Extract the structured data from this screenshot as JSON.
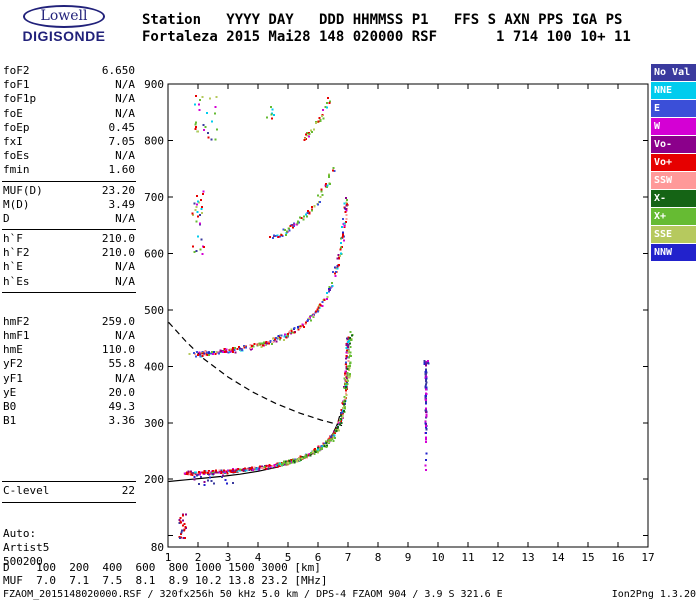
{
  "logo": {
    "brand": "Lowell",
    "product": "DIGISONDE"
  },
  "header": {
    "line1": "Station   YYYY DAY   DDD HHMMSS P1   FFS S AXN PPS IGA PS",
    "line2": "Fortaleza 2015 Mai28 148 020000 RSF       1 714 100 10+ 11"
  },
  "params": {
    "groups": [
      {
        "rows": [
          [
            "foF2",
            "6.650"
          ],
          [
            "foF1",
            "N/A"
          ],
          [
            "foF1p",
            "N/A"
          ],
          [
            "foE",
            "N/A"
          ],
          [
            "foEp",
            "0.45"
          ],
          [
            "fxI",
            "7.05"
          ],
          [
            "foEs",
            "N/A"
          ],
          [
            "fmin",
            "1.60"
          ]
        ]
      },
      {
        "rows": [
          [
            "MUF(D)",
            "23.20"
          ],
          [
            "M(D)",
            "3.49"
          ],
          [
            "D",
            "N/A"
          ]
        ]
      },
      {
        "rows": [
          [
            "h`F",
            "210.0"
          ],
          [
            "h`F2",
            "210.0"
          ],
          [
            "h`E",
            "N/A"
          ],
          [
            "h`Es",
            "N/A"
          ]
        ]
      },
      {
        "rows": [
          [
            "hmF2",
            "259.0"
          ],
          [
            "hmF1",
            "N/A"
          ],
          [
            "hmE",
            "110.0"
          ],
          [
            "yF2",
            "55.8"
          ],
          [
            "yF1",
            "N/A"
          ],
          [
            "yE",
            "20.0"
          ],
          [
            "B0",
            "49.3"
          ],
          [
            "B1",
            "3.36"
          ]
        ]
      },
      {
        "rows": [
          [
            "C-level",
            "22"
          ]
        ]
      },
      {
        "rows": [
          [
            "Auto:",
            ""
          ],
          [
            "Artist5",
            ""
          ],
          [
            "500200",
            ""
          ]
        ]
      }
    ]
  },
  "legend": {
    "items": [
      {
        "label": "No Val",
        "color": "#3a3a9e"
      },
      {
        "label": "NNE",
        "color": "#00ccee"
      },
      {
        "label": "E",
        "color": "#3b4fd8"
      },
      {
        "label": "W",
        "color": "#d400d4"
      },
      {
        "label": "Vo-",
        "color": "#8b008b"
      },
      {
        "label": "Vo+",
        "color": "#e60000"
      },
      {
        "label": "SSW",
        "color": "#ff9999"
      },
      {
        "label": "X-",
        "color": "#156415"
      },
      {
        "label": "X+",
        "color": "#66bb33"
      },
      {
        "label": "SSE",
        "color": "#b6c95e"
      },
      {
        "label": "NNW",
        "color": "#2222cc"
      }
    ]
  },
  "muf_table": {
    "row1": "D    100  200  400  600  800 1000 1500 3000 [km]",
    "row2": "MUF  7.0  7.1  7.5  8.1  8.9 10.2 13.8 23.2 [MHz]"
  },
  "status_bar": {
    "left": "FZAOM_2015148020000.RSF / 320fx256h 50 kHz 5.0 km / DPS-4 FZAOM 904 / 3.9 S 321.6 E",
    "right": "Ion2Png 1.3.20"
  },
  "chart_data": {
    "type": "scatter",
    "title": "Digisonde ionogram, Fortaleza, 2015 Mai28 148 020000",
    "xlabel": "[MHz]",
    "ylabel": "[km]",
    "x_axis": {
      "min": 1,
      "max": 17,
      "ticks": [
        1,
        2,
        3,
        4,
        5,
        6,
        7,
        8,
        9,
        10,
        11,
        12,
        13,
        14,
        15,
        16,
        17
      ]
    },
    "y_axis": {
      "min": 80,
      "max": 900,
      "tick_marks": [
        100,
        200,
        300,
        400,
        500,
        600,
        700,
        800,
        900
      ],
      "labels": [
        900,
        800,
        700,
        600,
        500,
        400,
        300,
        200,
        80
      ]
    },
    "palette": {
      "No Val": "#3a3a9e",
      "NNE": "#00ccee",
      "E": "#3b4fd8",
      "W": "#d400d4",
      "Vo-": "#8b008b",
      "Vo+": "#e60000",
      "SSW": "#ff9999",
      "X-": "#156415",
      "X+": "#66bb33",
      "SSE": "#b6c95e",
      "NNW": "#2222cc"
    },
    "curves": [
      {
        "name": "transmission-curve",
        "style": "dashed",
        "points": [
          [
            1.02,
            478
          ],
          [
            1.6,
            444
          ],
          [
            2.2,
            413
          ],
          [
            3.0,
            381
          ],
          [
            3.8,
            355
          ],
          [
            4.6,
            334
          ],
          [
            5.4,
            317
          ],
          [
            6.1,
            305
          ],
          [
            6.8,
            295
          ]
        ]
      },
      {
        "name": "profile-curve",
        "style": "solid",
        "points": [
          [
            1.02,
            196
          ],
          [
            1.6,
            199
          ],
          [
            2.2,
            202
          ],
          [
            2.8,
            205
          ],
          [
            3.4,
            209
          ],
          [
            4.0,
            214
          ],
          [
            4.6,
            221
          ],
          [
            5.1,
            229
          ],
          [
            5.6,
            240
          ],
          [
            6.0,
            252
          ],
          [
            6.3,
            266
          ],
          [
            6.5,
            281
          ],
          [
            6.65,
            298
          ],
          [
            6.72,
            312
          ]
        ]
      }
    ],
    "series": [
      {
        "name": "f-trace-first-order",
        "mode": "path",
        "path": [
          [
            1.55,
            211
          ],
          [
            2.0,
            211
          ],
          [
            2.5,
            212
          ],
          [
            3.0,
            214
          ],
          [
            3.5,
            216
          ],
          [
            4.0,
            219
          ],
          [
            4.5,
            223
          ],
          [
            5.0,
            229
          ],
          [
            5.4,
            236
          ],
          [
            5.8,
            246
          ],
          [
            6.1,
            257
          ],
          [
            6.4,
            271
          ],
          [
            6.65,
            290
          ],
          [
            6.8,
            313
          ],
          [
            6.9,
            350
          ],
          [
            6.96,
            402
          ],
          [
            7.0,
            453
          ]
        ],
        "colors": [
          [
            "Vo+",
            5
          ],
          [
            "W",
            1.5
          ],
          [
            "Vo-",
            1.5
          ],
          [
            "SSW",
            1.5
          ],
          [
            "No Val",
            1
          ],
          [
            "X+",
            1
          ],
          [
            "E",
            0.7
          ],
          [
            "NNE",
            0.5
          ]
        ],
        "density": 3,
        "jitter_f": 0.05,
        "jitter_h": 4
      },
      {
        "name": "f-trace-x-mode",
        "mode": "path",
        "path": [
          [
            4.7,
            226
          ],
          [
            5.2,
            232
          ],
          [
            5.7,
            242
          ],
          [
            6.1,
            254
          ],
          [
            6.45,
            270
          ],
          [
            6.7,
            292
          ],
          [
            6.85,
            322
          ],
          [
            7.0,
            372
          ],
          [
            7.08,
            440
          ],
          [
            7.12,
            460
          ]
        ],
        "colors": [
          [
            "X+",
            4
          ],
          [
            "SSE",
            2
          ],
          [
            "X-",
            1.5
          ],
          [
            "NNE",
            0.4
          ]
        ],
        "density": 2,
        "jitter_f": 0.05,
        "jitter_h": 4
      },
      {
        "name": "second-order-echo",
        "mode": "path",
        "path": [
          [
            1.75,
            420
          ],
          [
            2.4,
            423
          ],
          [
            3.0,
            427
          ],
          [
            3.6,
            432
          ],
          [
            4.2,
            440
          ],
          [
            4.8,
            452
          ],
          [
            5.3,
            466
          ],
          [
            5.8,
            487
          ],
          [
            6.1,
            509
          ],
          [
            6.4,
            537
          ],
          [
            6.6,
            568
          ],
          [
            6.78,
            612
          ],
          [
            6.9,
            662
          ],
          [
            6.95,
            700
          ]
        ],
        "colors": [
          [
            "Vo+",
            2.5
          ],
          [
            "X+",
            1.5
          ],
          [
            "W",
            1
          ],
          [
            "NNE",
            1
          ],
          [
            "E",
            1
          ],
          [
            "SSE",
            1
          ],
          [
            "SSW",
            0.8
          ],
          [
            "NNW",
            0.8
          ],
          [
            "Vo-",
            0.7
          ]
        ],
        "density": 2,
        "jitter_f": 0.06,
        "jitter_h": 6
      },
      {
        "name": "third-order-echo",
        "mode": "path",
        "path": [
          [
            4.4,
            622
          ],
          [
            4.9,
            638
          ],
          [
            5.4,
            658
          ],
          [
            5.8,
            678
          ],
          [
            6.1,
            700
          ],
          [
            6.35,
            726
          ],
          [
            6.5,
            752
          ]
        ],
        "colors": [
          [
            "Vo+",
            2
          ],
          [
            "X+",
            2
          ],
          [
            "SSE",
            1
          ],
          [
            "NNE",
            1
          ],
          [
            "W",
            1
          ],
          [
            "E",
            0.8
          ]
        ],
        "density": 1.4,
        "jitter_f": 0.07,
        "jitter_h": 7
      },
      {
        "name": "third-order-left-cluster",
        "mode": "box",
        "box": [
          1.82,
          2.2,
          598,
          712
        ],
        "count": 30,
        "colors": [
          [
            "Vo+",
            2
          ],
          [
            "X+",
            1
          ],
          [
            "NNE",
            1
          ],
          [
            "No Val",
            1
          ],
          [
            "W",
            1
          ],
          [
            "SSE",
            1
          ]
        ]
      },
      {
        "name": "fourth-order-echo",
        "mode": "path",
        "path": [
          [
            5.5,
            800
          ],
          [
            5.9,
            824
          ],
          [
            6.2,
            850
          ],
          [
            6.42,
            876
          ]
        ],
        "colors": [
          [
            "Vo+",
            2
          ],
          [
            "X+",
            2
          ],
          [
            "SSE",
            1
          ],
          [
            "W",
            1
          ],
          [
            "NNE",
            0.6
          ]
        ],
        "density": 1.3,
        "jitter_f": 0.07,
        "jitter_h": 8
      },
      {
        "name": "fourth-order-left-cluster",
        "mode": "box",
        "box": [
          1.85,
          2.65,
          795,
          880
        ],
        "count": 26,
        "colors": [
          [
            "Vo+",
            2
          ],
          [
            "X+",
            1.5
          ],
          [
            "NNE",
            1
          ],
          [
            "W",
            1
          ],
          [
            "No Val",
            0.8
          ],
          [
            "SSE",
            1
          ]
        ]
      },
      {
        "name": "mid-stray-cluster",
        "mode": "box",
        "box": [
          4.3,
          4.65,
          838,
          868
        ],
        "count": 7,
        "colors": [
          [
            "X+",
            1
          ],
          [
            "Vo+",
            1
          ],
          [
            "NNE",
            0.5
          ]
        ]
      },
      {
        "name": "e-region-echo",
        "mode": "box",
        "box": [
          1.38,
          1.6,
          95,
          138
        ],
        "count": 24,
        "colors": [
          [
            "Vo+",
            3
          ],
          [
            "Vo-",
            1.2
          ],
          [
            "No Val",
            0.6
          ]
        ]
      },
      {
        "name": "interference-line-dense",
        "mode": "path",
        "path": [
          [
            9.6,
            300
          ],
          [
            9.6,
            408
          ]
        ],
        "colors": [
          [
            "W",
            2.5
          ],
          [
            "NNW",
            2
          ],
          [
            "No Val",
            1.5
          ],
          [
            "Vo-",
            1
          ]
        ],
        "density": 2.6,
        "jitter_f": 0.015,
        "jitter_h": 1.5
      },
      {
        "name": "interference-line-sparse",
        "mode": "path",
        "path": [
          [
            9.6,
            216
          ],
          [
            9.6,
            300
          ]
        ],
        "colors": [
          [
            "W",
            2
          ],
          [
            "NNW",
            1.5
          ],
          [
            "No Val",
            1
          ],
          [
            "Vo-",
            1
          ]
        ],
        "density": 1.1,
        "jitter_f": 0.015,
        "jitter_h": 1.5
      },
      {
        "name": "interference-line-cap",
        "mode": "box",
        "box": [
          9.52,
          9.7,
          404,
          410
        ],
        "count": 8,
        "colors": [
          [
            "No Val",
            1.5
          ],
          [
            "W",
            1
          ],
          [
            "NNW",
            1
          ]
        ]
      },
      {
        "name": "baseline-noise-specks",
        "mode": "box",
        "box": [
          1.55,
          3.3,
          190,
          207
        ],
        "count": 16,
        "colors": [
          [
            "No Val",
            2
          ],
          [
            "Vo-",
            1
          ],
          [
            "NNW",
            0.8
          ]
        ]
      }
    ]
  }
}
